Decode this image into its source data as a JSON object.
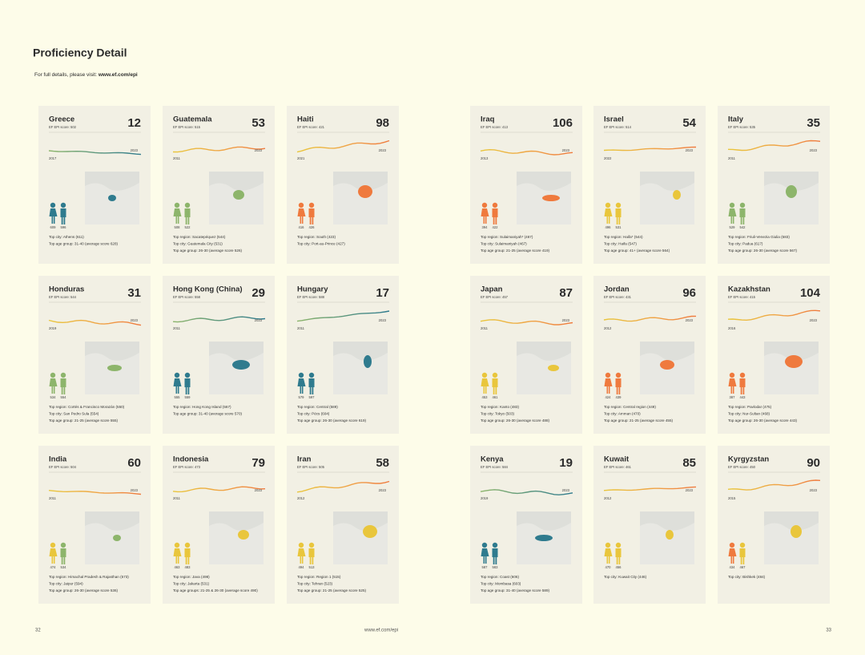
{
  "header": {
    "title": "Proficiency Detail",
    "subtitle": "For full details, please visit:",
    "url": "www.ef.com/epi"
  },
  "cards": [
    {
      "name": "Greece",
      "rank": 12,
      "score_label": "EF EPI score: 502",
      "start_year": "2017",
      "end_year": "2023",
      "female_score": "609",
      "male_score": "596",
      "figure_colors": [
        "#2f7b8e",
        "#2f7b8e"
      ],
      "details": [
        "Top city: Athens (611)",
        "Top age group: 31-40 (average score 628)"
      ]
    },
    {
      "name": "Guatemala",
      "rank": 53,
      "score_label": "EF EPI score: 515",
      "start_year": "2011",
      "end_year": "2023",
      "female_score": "508",
      "male_score": "522",
      "figure_colors": [
        "#8db56b",
        "#8db56b"
      ],
      "details": [
        "Top region: Sacatepéquez (544)",
        "Top city: Guatemala City (531)",
        "Top age group: 26-30 (average score 526)"
      ]
    },
    {
      "name": "Haiti",
      "rank": 98,
      "score_label": "EF EPI score: 421",
      "start_year": "2021",
      "end_year": "2023",
      "female_score": "416",
      "male_score": "426",
      "figure_colors": [
        "#ef7a3e",
        "#ef7a3e"
      ],
      "details": [
        "Top region: South (423)",
        "Top city: Port-au-Prince (427)"
      ]
    },
    {
      "name": "Iraq",
      "rank": 106,
      "score_label": "EF EPI score: 413",
      "start_year": "2013",
      "end_year": "2023",
      "female_score": "394",
      "male_score": "422",
      "figure_colors": [
        "#ef7a3e",
        "#ef7a3e"
      ],
      "details": [
        "Top region: Sulaimaniyah* (467)",
        "Top city: Sulaimaniyah (467)",
        "Top age group: 21-25 (average score 419)"
      ]
    },
    {
      "name": "Israel",
      "rank": 54,
      "score_label": "EF EPI score: 514",
      "start_year": "2022",
      "end_year": "2023",
      "female_score": "496",
      "male_score": "531",
      "figure_colors": [
        "#e9c63c",
        "#e9c63c"
      ],
      "details": [
        "Top region: Haifa* (544)",
        "Top city: Haifa (547)",
        "Top age group: 41+ (average score 564)"
      ]
    },
    {
      "name": "Italy",
      "rank": 35,
      "score_label": "EF EPI score: 535",
      "start_year": "2011",
      "end_year": "2023",
      "female_score": "529",
      "male_score": "542",
      "figure_colors": [
        "#8db56b",
        "#8db56b"
      ],
      "details": [
        "Top region: Friuli-Venezia Giulia (583)",
        "Top city: Padua (617)",
        "Top age group: 26-30 (average score 567)"
      ]
    },
    {
      "name": "Honduras",
      "rank": 31,
      "score_label": "EF EPI score: 544",
      "start_year": "2019",
      "end_year": "2023",
      "female_score": "534",
      "male_score": "554",
      "figure_colors": [
        "#8db56b",
        "#8db56b"
      ],
      "details": [
        "Top region: Cortés & Francisco Morazán (550)",
        "Top city: San Pedro Sula (554)",
        "Top age group: 21-25 (average score 555)"
      ]
    },
    {
      "name": "Hong Kong (China)",
      "rank": 29,
      "score_label": "EF EPI score: 558",
      "start_year": "2011",
      "end_year": "2023",
      "female_score": "555",
      "male_score": "559",
      "figure_colors": [
        "#2f7b8e",
        "#2f7b8e"
      ],
      "details": [
        "Top region: Hong Kong Island (567)",
        "Top age group: 31-40 (average score 570)"
      ]
    },
    {
      "name": "Hungary",
      "rank": 17,
      "score_label": "EF EPI score: 588",
      "start_year": "2011",
      "end_year": "2023",
      "female_score": "579",
      "male_score": "597",
      "figure_colors": [
        "#2f7b8e",
        "#2f7b8e"
      ],
      "details": [
        "Top region: Central (589)",
        "Top city: Pécs (604)",
        "Top age group: 26-30 (average score 619)"
      ]
    },
    {
      "name": "Japan",
      "rank": 87,
      "score_label": "EF EPI score: 457",
      "start_year": "2011",
      "end_year": "2023",
      "female_score": "453",
      "male_score": "461",
      "figure_colors": [
        "#e9c63c",
        "#e9c63c"
      ],
      "details": [
        "Top region: Kanto (483)",
        "Top city: Tokyo (503)",
        "Top age group: 26-30 (average score 488)"
      ]
    },
    {
      "name": "Jordan",
      "rank": 96,
      "score_label": "EF EPI score: 431",
      "start_year": "2012",
      "end_year": "2023",
      "female_score": "424",
      "male_score": "439",
      "figure_colors": [
        "#ef7a3e",
        "#ef7a3e"
      ],
      "details": [
        "Top region: Central region (449)",
        "Top city: Amman (470)",
        "Top age group: 21-25 (average score 455)"
      ]
    },
    {
      "name": "Kazakhstan",
      "rank": 104,
      "score_label": "EF EPI score: 415",
      "start_year": "2016",
      "end_year": "2023",
      "female_score": "387",
      "male_score": "443",
      "figure_colors": [
        "#ef7a3e",
        "#ef7a3e"
      ],
      "details": [
        "Top region: Pavlodar (475)",
        "Top city: Nur-Sultan (468)",
        "Top age group: 26-30 (average score 443)"
      ]
    },
    {
      "name": "India",
      "rank": 60,
      "score_label": "EF EPI score: 504",
      "start_year": "2011",
      "end_year": "2023",
      "female_score": "474",
      "male_score": "534",
      "figure_colors": [
        "#e9c63c",
        "#8db56b"
      ],
      "details": [
        "Top region: Himachal Pradesh & Rajasthan (573)",
        "Top city: Jaipur (594)",
        "Top age group: 26-30 (average score 536)"
      ]
    },
    {
      "name": "Indonesia",
      "rank": 79,
      "score_label": "EF EPI score: 473",
      "start_year": "2011",
      "end_year": "2023",
      "female_score": "463",
      "male_score": "483",
      "figure_colors": [
        "#e9c63c",
        "#e9c63c"
      ],
      "details": [
        "Top region: Java (498)",
        "Top city: Jakarta (531)",
        "Top age groups: 21-25 & 26-30 (average score 490)"
      ]
    },
    {
      "name": "Iran",
      "rank": 58,
      "score_label": "EF EPI score: 505",
      "start_year": "2012",
      "end_year": "2023",
      "female_score": "494",
      "male_score": "513",
      "figure_colors": [
        "#e9c63c",
        "#e9c63c"
      ],
      "details": [
        "Top region: Region 1 (515)",
        "Top city: Tehran (523)",
        "Top age group: 21-25 (average score 525)"
      ]
    },
    {
      "name": "Kenya",
      "rank": 19,
      "score_label": "EF EPI score: 584",
      "start_year": "2019",
      "end_year": "2023",
      "female_score": "587",
      "male_score": "583",
      "figure_colors": [
        "#2f7b8e",
        "#2f7b8e"
      ],
      "details": [
        "Top region: Coast (606)",
        "Top city: Mombasa (603)",
        "Top age group: 31-40 (average score 589)"
      ]
    },
    {
      "name": "Kuwait",
      "rank": 85,
      "score_label": "EF EPI score: 461",
      "start_year": "2012",
      "end_year": "2023",
      "female_score": "470",
      "male_score": "456",
      "figure_colors": [
        "#e9c63c",
        "#e9c63c"
      ],
      "details": [
        "Top city: Kuwait City (446)"
      ]
    },
    {
      "name": "Kyrgyzstan",
      "rank": 90,
      "score_label": "EF EPI score: 450",
      "start_year": "2015",
      "end_year": "2023",
      "female_score": "434",
      "male_score": "467",
      "figure_colors": [
        "#ef7a3e",
        "#e9c63c"
      ],
      "details": [
        "Top city: Bishkek (484)"
      ]
    }
  ],
  "footer": {
    "left_page": "32",
    "url": "www.ef.com/epi",
    "right_page": "33"
  }
}
